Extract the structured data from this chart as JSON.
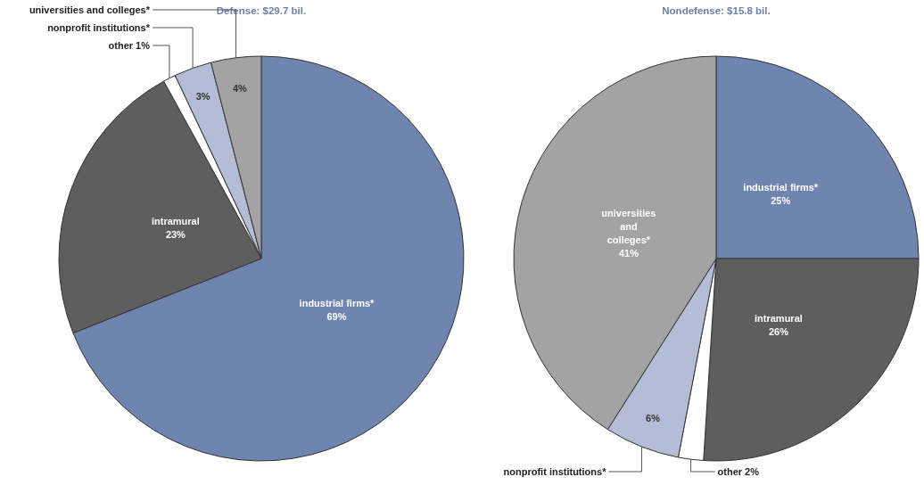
{
  "chart_data": [
    {
      "type": "pie",
      "title": "Defense: $29.7 bil.",
      "categories": [
        "industrial firms*",
        "intramural",
        "other",
        "nonprofit institutions*",
        "universities and colleges*"
      ],
      "values": [
        69,
        23,
        1,
        3,
        4
      ],
      "value_labels": [
        "69%",
        "23%",
        "1%",
        "3%",
        "4%"
      ],
      "colors": [
        "#7084b0",
        "#5e5e5e",
        "#ffffff",
        "#b3bdd6",
        "#a3a3a3"
      ]
    },
    {
      "type": "pie",
      "title": "Nondefense: $15.8 bil.",
      "categories": [
        "industrial firms*",
        "intramural",
        "other",
        "nonprofit institutions*",
        "universities and colleges*"
      ],
      "values": [
        25,
        26,
        2,
        6,
        41
      ],
      "value_labels": [
        "25%",
        "26%",
        "2%",
        "6%",
        "41%"
      ],
      "colors": [
        "#7084b0",
        "#5e5e5e",
        "#ffffff",
        "#b3bdd6",
        "#a3a3a3"
      ]
    }
  ]
}
